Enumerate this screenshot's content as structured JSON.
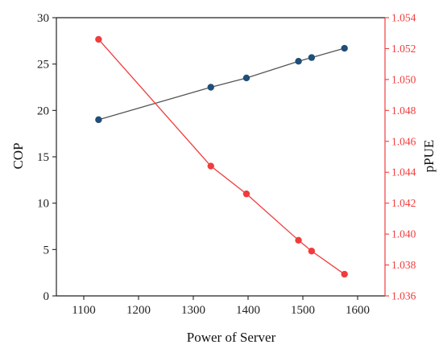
{
  "chart_data": {
    "type": "line",
    "title": "",
    "xlabel": "Power of Server",
    "ylabel_left": "COP",
    "ylabel_right": "pPUE",
    "xlim": [
      1050,
      1650
    ],
    "ylim_left": [
      0,
      30
    ],
    "ylim_right": [
      1.036,
      1.054
    ],
    "x_ticks": [
      "1100",
      "1200",
      "1300",
      "1400",
      "1500",
      "1600"
    ],
    "y_left_ticks": [
      "0",
      "5",
      "10",
      "15",
      "20",
      "25",
      "30"
    ],
    "y_right_ticks": [
      "1.036",
      "1.038",
      "1.040",
      "1.042",
      "1.044",
      "1.046",
      "1.048",
      "1.050",
      "1.052",
      "1.054"
    ],
    "grid": false,
    "series": [
      {
        "axis": "left",
        "color": "#1f4e79",
        "line_color": "#555555",
        "points": [
          {
            "x": 1127,
            "y": 19.0
          },
          {
            "x": 1332,
            "y": 22.5
          },
          {
            "x": 1397,
            "y": 23.5
          },
          {
            "x": 1492,
            "y": 25.3
          },
          {
            "x": 1516,
            "y": 25.7
          },
          {
            "x": 1576,
            "y": 26.7
          }
        ]
      },
      {
        "axis": "right",
        "color": "#f03c3c",
        "line_color": "#f03c3c",
        "points": [
          {
            "x": 1127,
            "y": 1.0526
          },
          {
            "x": 1332,
            "y": 1.0444
          },
          {
            "x": 1397,
            "y": 1.0426
          },
          {
            "x": 1492,
            "y": 1.0396
          },
          {
            "x": 1516,
            "y": 1.0389
          },
          {
            "x": 1576,
            "y": 1.0374
          }
        ]
      }
    ]
  },
  "colors": {
    "left_axis": "#222222",
    "right_axis": "#f03c3c"
  }
}
